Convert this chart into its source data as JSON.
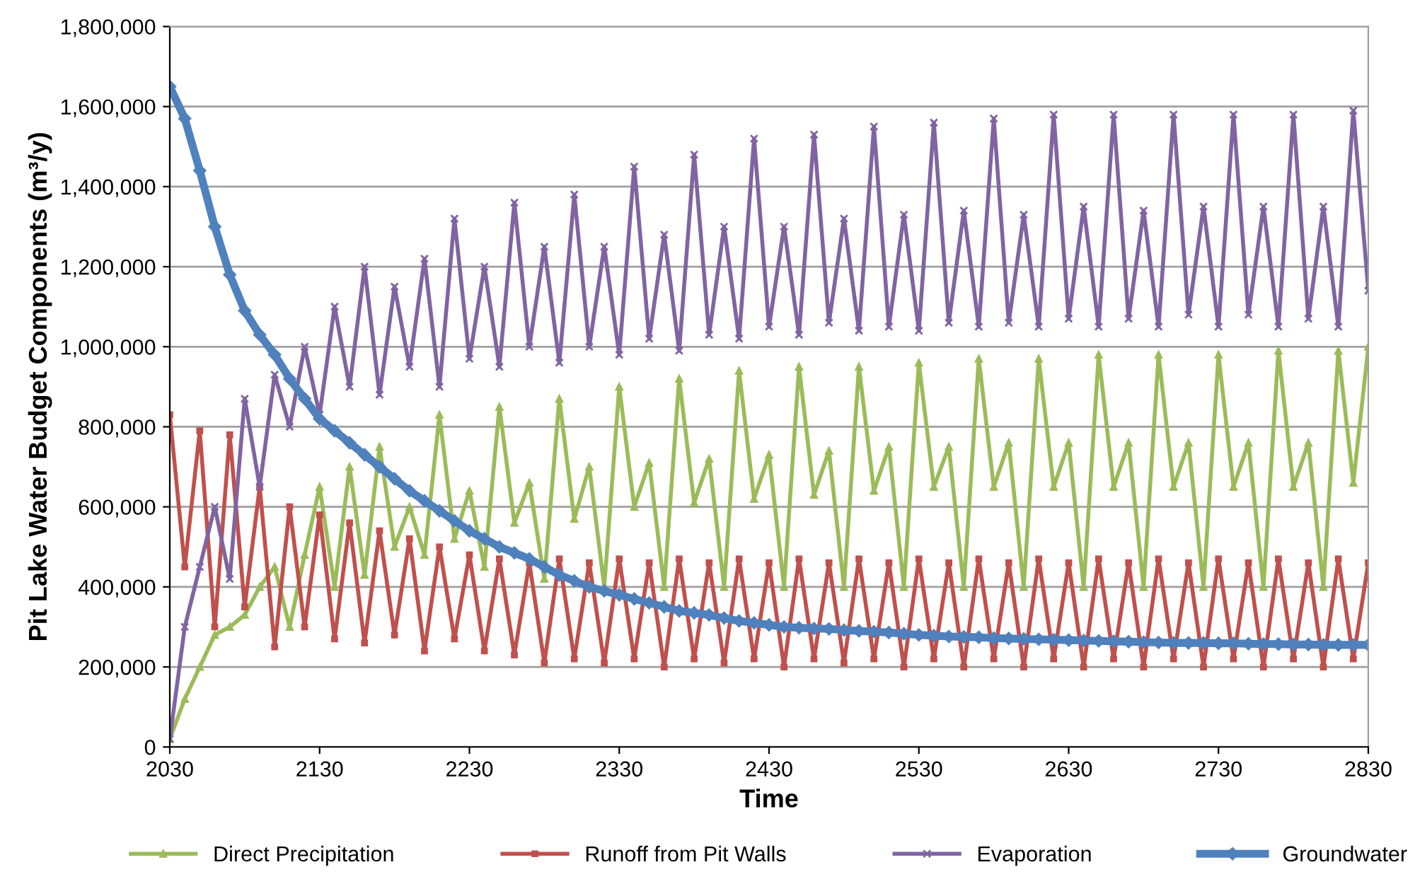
{
  "chart_data": {
    "type": "line",
    "xlabel": "Time",
    "ylabel": "Pit Lake Water Budget Components (m³/y)",
    "x": [
      2030,
      2040,
      2050,
      2060,
      2070,
      2080,
      2090,
      2100,
      2110,
      2120,
      2130,
      2140,
      2150,
      2160,
      2170,
      2180,
      2190,
      2200,
      2210,
      2220,
      2230,
      2240,
      2250,
      2260,
      2270,
      2280,
      2290,
      2300,
      2310,
      2320,
      2330,
      2340,
      2350,
      2360,
      2370,
      2380,
      2390,
      2400,
      2410,
      2420,
      2430,
      2440,
      2450,
      2460,
      2470,
      2480,
      2490,
      2500,
      2510,
      2520,
      2530,
      2540,
      2550,
      2560,
      2570,
      2580,
      2590,
      2600,
      2610,
      2620,
      2630,
      2640,
      2650,
      2660,
      2670,
      2680,
      2690,
      2700,
      2710,
      2720,
      2730,
      2740,
      2750,
      2760,
      2770,
      2780,
      2790,
      2800,
      2810,
      2820,
      2830
    ],
    "series": [
      {
        "name": "Direct Precipitation",
        "color": "#9bbb59",
        "marker": "triangle",
        "values": [
          20000,
          120000,
          200000,
          280000,
          300000,
          330000,
          400000,
          450000,
          300000,
          480000,
          650000,
          400000,
          700000,
          430000,
          750000,
          500000,
          600000,
          480000,
          830000,
          520000,
          640000,
          450000,
          850000,
          560000,
          660000,
          420000,
          870000,
          570000,
          700000,
          400000,
          900000,
          600000,
          710000,
          400000,
          920000,
          610000,
          720000,
          400000,
          940000,
          620000,
          730000,
          400000,
          950000,
          630000,
          740000,
          400000,
          950000,
          640000,
          750000,
          400000,
          960000,
          650000,
          750000,
          400000,
          970000,
          650000,
          760000,
          400000,
          970000,
          650000,
          760000,
          400000,
          980000,
          650000,
          760000,
          400000,
          980000,
          650000,
          760000,
          400000,
          980000,
          650000,
          760000,
          400000,
          990000,
          650000,
          760000,
          400000,
          990000,
          660000,
          1000000
        ]
      },
      {
        "name": "Runoff from Pit Walls",
        "color": "#c0504d",
        "marker": "square",
        "values": [
          830000,
          450000,
          790000,
          300000,
          780000,
          350000,
          650000,
          250000,
          600000,
          300000,
          580000,
          270000,
          560000,
          260000,
          540000,
          280000,
          520000,
          240000,
          500000,
          270000,
          480000,
          240000,
          470000,
          230000,
          460000,
          210000,
          470000,
          220000,
          460000,
          210000,
          470000,
          220000,
          460000,
          200000,
          470000,
          220000,
          460000,
          210000,
          470000,
          220000,
          460000,
          200000,
          470000,
          220000,
          460000,
          210000,
          470000,
          220000,
          460000,
          200000,
          470000,
          220000,
          460000,
          200000,
          470000,
          220000,
          460000,
          200000,
          470000,
          220000,
          460000,
          200000,
          470000,
          220000,
          460000,
          200000,
          470000,
          220000,
          460000,
          200000,
          470000,
          220000,
          460000,
          200000,
          470000,
          220000,
          460000,
          200000,
          470000,
          220000,
          460000
        ]
      },
      {
        "name": "Evaporation",
        "color": "#8064a2",
        "marker": "cross",
        "values": [
          20000,
          300000,
          450000,
          600000,
          420000,
          870000,
          650000,
          930000,
          800000,
          1000000,
          830000,
          1100000,
          900000,
          1200000,
          880000,
          1150000,
          950000,
          1220000,
          900000,
          1320000,
          970000,
          1200000,
          950000,
          1360000,
          1000000,
          1250000,
          960000,
          1380000,
          1000000,
          1250000,
          980000,
          1450000,
          1020000,
          1280000,
          990000,
          1480000,
          1030000,
          1300000,
          1020000,
          1520000,
          1050000,
          1300000,
          1030000,
          1530000,
          1060000,
          1320000,
          1040000,
          1550000,
          1050000,
          1330000,
          1040000,
          1560000,
          1060000,
          1340000,
          1050000,
          1570000,
          1060000,
          1330000,
          1050000,
          1580000,
          1070000,
          1350000,
          1050000,
          1580000,
          1070000,
          1340000,
          1050000,
          1580000,
          1080000,
          1350000,
          1050000,
          1580000,
          1080000,
          1350000,
          1050000,
          1580000,
          1070000,
          1350000,
          1050000,
          1590000,
          1140000
        ]
      },
      {
        "name": "Groundwater",
        "color": "#4f81bd",
        "marker": "diamond",
        "values": [
          1650000,
          1570000,
          1440000,
          1300000,
          1180000,
          1090000,
          1030000,
          980000,
          920000,
          870000,
          820000,
          790000,
          760000,
          730000,
          700000,
          670000,
          640000,
          615000,
          590000,
          565000,
          540000,
          520000,
          500000,
          485000,
          470000,
          450000,
          430000,
          415000,
          400000,
          390000,
          380000,
          370000,
          360000,
          350000,
          340000,
          335000,
          330000,
          322000,
          315000,
          310000,
          305000,
          300000,
          298000,
          296000,
          295000,
          292000,
          290000,
          288000,
          286000,
          283000,
          280000,
          278000,
          276000,
          275000,
          274000,
          272000,
          271000,
          270000,
          269000,
          268000,
          267000,
          266000,
          265000,
          264000,
          263000,
          262000,
          261000,
          260000,
          260000,
          260000,
          259000,
          259000,
          258000,
          257000,
          257000,
          256000,
          256000,
          255000,
          255000,
          255000,
          255000
        ]
      }
    ],
    "xlim": [
      2030,
      2830
    ],
    "xticks": [
      2030,
      2130,
      2230,
      2330,
      2430,
      2530,
      2630,
      2730,
      2830
    ],
    "ylim": [
      0,
      1800000
    ],
    "yticks": [
      0,
      {
        "value": 200000,
        "label": "200,000"
      },
      {
        "value": 400000,
        "label": "400,000"
      },
      {
        "value": 600000,
        "label": "600,000"
      },
      {
        "value": 800000,
        "label": "800,000"
      },
      {
        "value": 1000000,
        "label": "1,000,000"
      },
      {
        "value": 1200000,
        "label": "1,200,000"
      },
      {
        "value": 1400000,
        "label": "1,400,000"
      },
      {
        "value": 1600000,
        "label": "1,600,000"
      },
      {
        "value": 1800000,
        "label": "1,800,000"
      }
    ],
    "grid": "y",
    "legend": "bottom"
  }
}
